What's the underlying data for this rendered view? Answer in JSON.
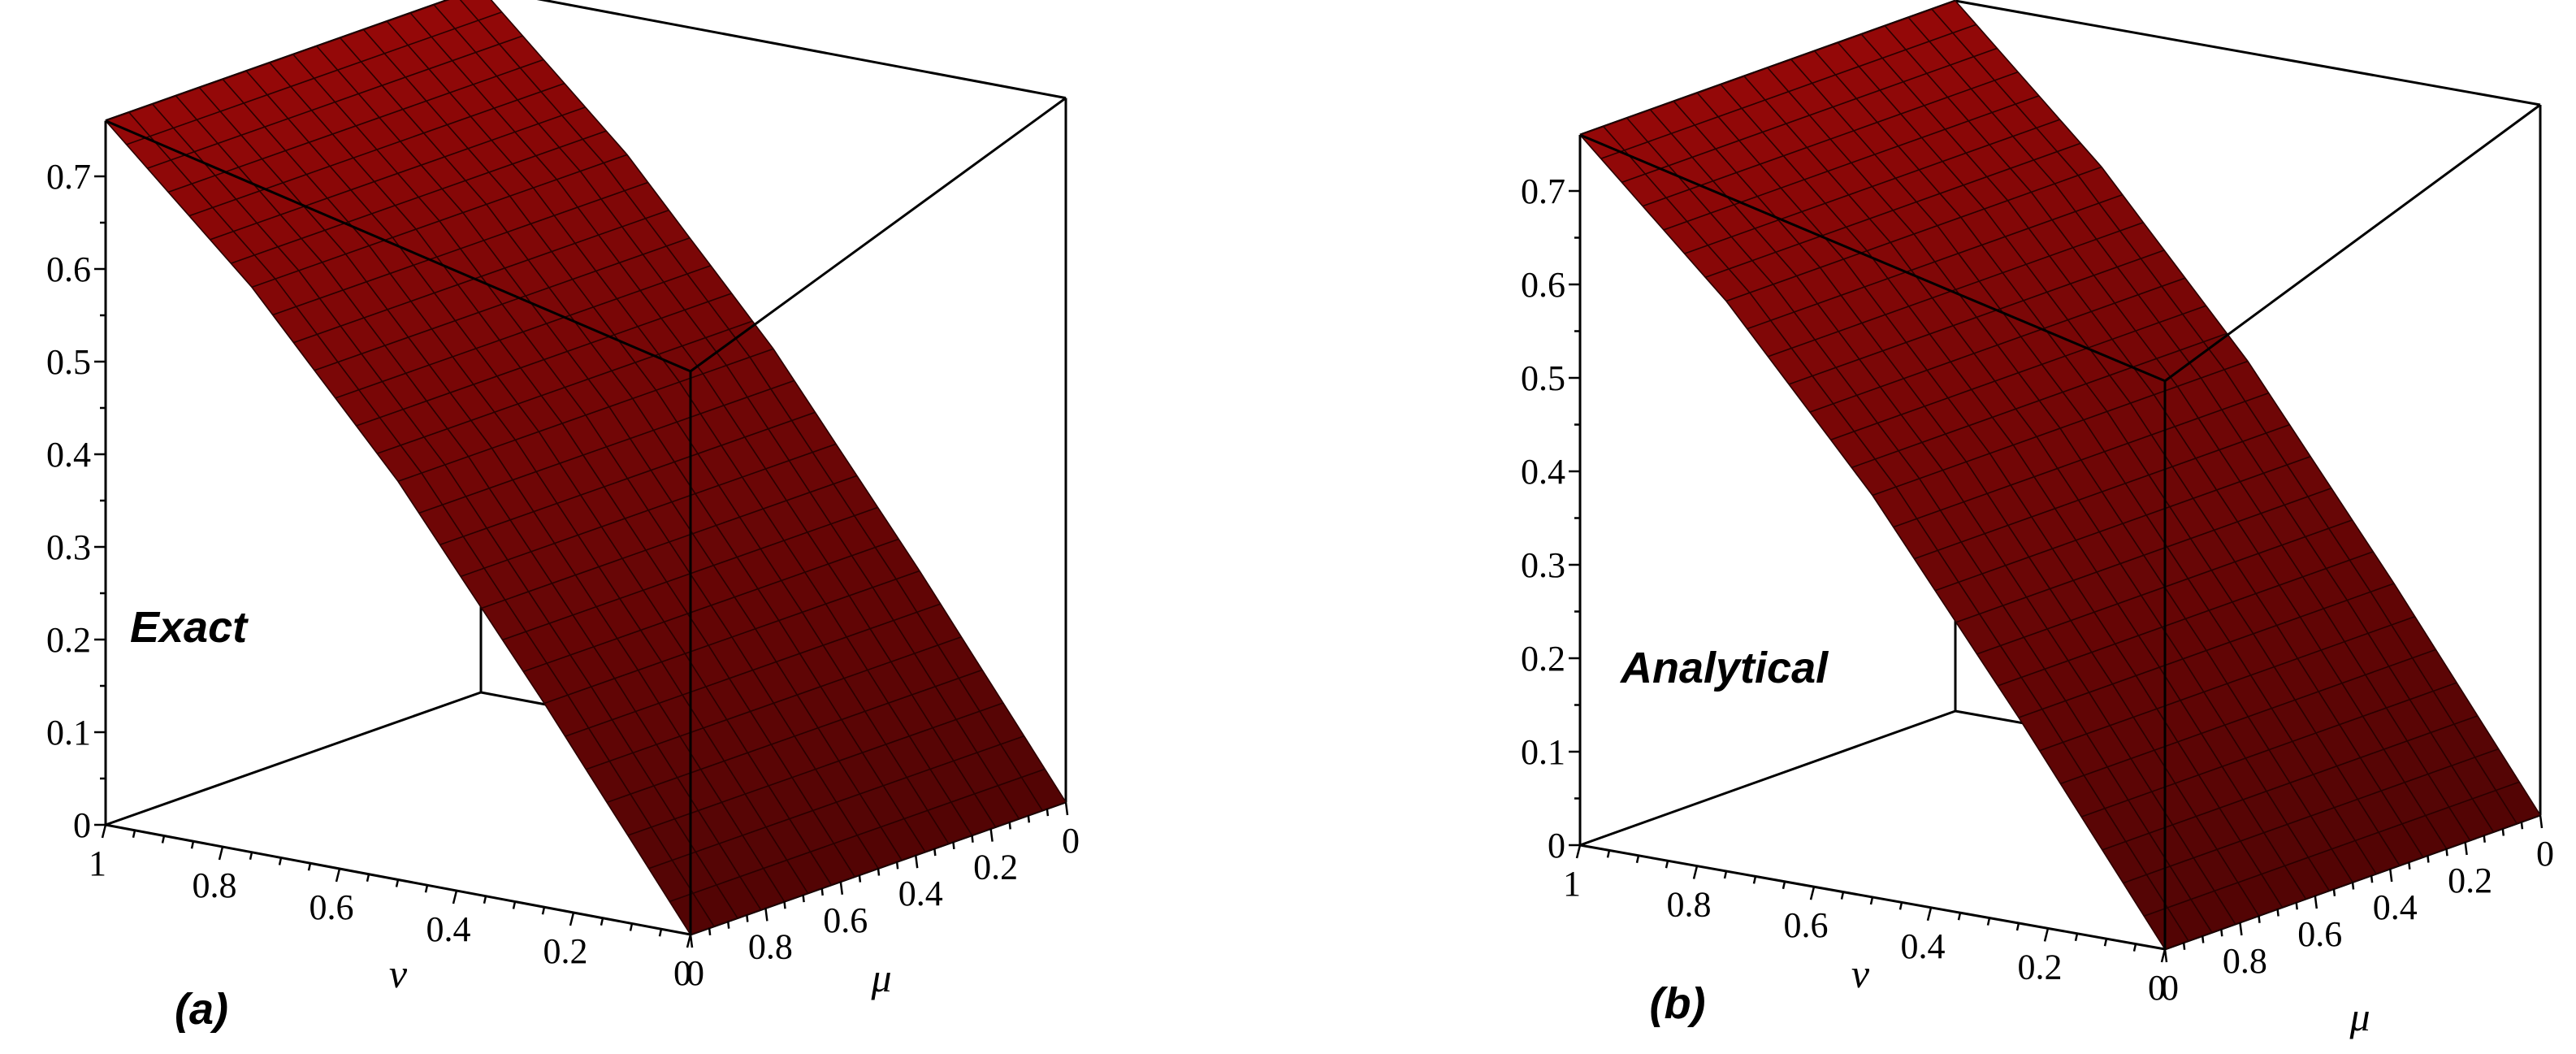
{
  "chart_data": [
    {
      "type": "surface3d",
      "caption": "(a)",
      "label": "Exact",
      "xlabel": "ν",
      "ylabel": "μ",
      "zlabel": "",
      "x_range": [
        0,
        1
      ],
      "y_range": [
        0,
        1
      ],
      "zlim": [
        0,
        0.75
      ],
      "z_ticks": [
        "0",
        "0.1",
        "0.2",
        "0.3",
        "0.4",
        "0.5",
        "0.6",
        "0.7"
      ],
      "nu_ticks": [
        "1",
        "0.8",
        "0.6",
        "0.4",
        "0.2",
        "0"
      ],
      "mu_ticks": [
        "0",
        "0.8",
        "0.6",
        "0.4",
        "0.2",
        "0"
      ],
      "surface": {
        "nu": [
          0,
          0.25,
          0.5,
          0.75,
          1.0
        ],
        "z": [
          0,
          0.22,
          0.43,
          0.61,
          0.76
        ]
      },
      "surface_color": "#8b0000",
      "grid_color": "#2a0000"
    },
    {
      "type": "surface3d",
      "caption": "(b)",
      "label": "Analytical",
      "xlabel": "ν",
      "ylabel": "μ",
      "zlabel": "",
      "x_range": [
        0,
        1
      ],
      "y_range": [
        0,
        1
      ],
      "zlim": [
        0,
        0.75
      ],
      "z_ticks": [
        "0",
        "0.1",
        "0.2",
        "0.3",
        "0.4",
        "0.5",
        "0.6",
        "0.7"
      ],
      "nu_ticks": [
        "1",
        "0.8",
        "0.6",
        "0.4",
        "0.2",
        "0"
      ],
      "mu_ticks": [
        "0",
        "0.8",
        "0.6",
        "0.4",
        "0.2",
        "0"
      ],
      "surface": {
        "nu": [
          0,
          0.25,
          0.5,
          0.75,
          1.0
        ],
        "z": [
          0,
          0.22,
          0.43,
          0.61,
          0.76
        ]
      },
      "surface_color": "#8b0000",
      "grid_color": "#2a0000"
    }
  ]
}
